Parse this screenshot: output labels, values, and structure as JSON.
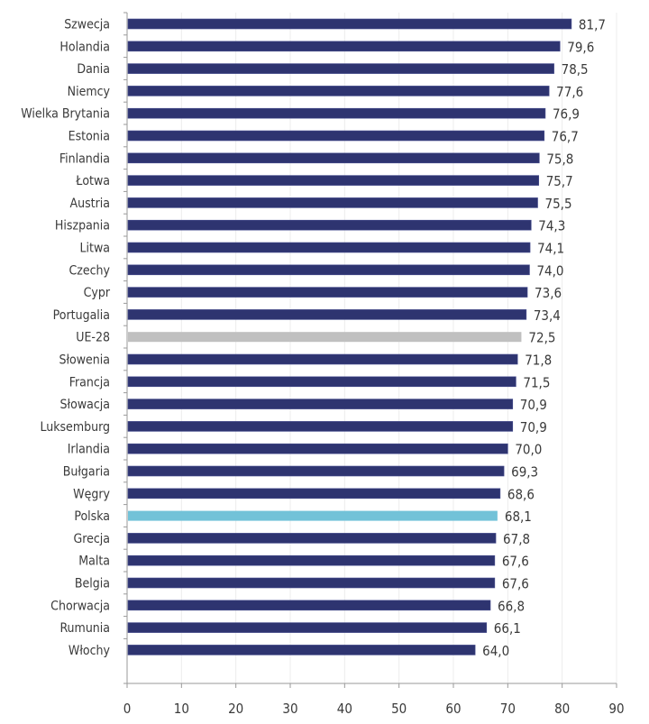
{
  "chart_data": {
    "type": "bar",
    "orientation": "horizontal",
    "title": "",
    "xlabel": "",
    "ylabel": "",
    "xlim": [
      0,
      90
    ],
    "xticks": [
      0,
      10,
      20,
      30,
      40,
      50,
      60,
      70,
      80,
      90
    ],
    "grid": true,
    "legend": "none",
    "categories": [
      "Szwecja",
      "Holandia",
      "Dania",
      "Niemcy",
      "Wielka Brytania",
      "Estonia",
      "Finlandia",
      "Łotwa",
      "Austria",
      "Hiszpania",
      "Litwa",
      "Czechy",
      "Cypr",
      "Portugalia",
      "UE-28",
      "Słowenia",
      "Francja",
      "Słowacja",
      "Luksemburg",
      "Irlandia",
      "Bułgaria",
      "Węgry",
      "Polska",
      "Grecja",
      "Malta",
      "Belgia",
      "Chorwacja",
      "Rumunia",
      "Włochy"
    ],
    "values": [
      81.7,
      79.6,
      78.5,
      77.6,
      76.9,
      76.7,
      75.8,
      75.7,
      75.5,
      74.3,
      74.1,
      74.0,
      73.6,
      73.4,
      72.5,
      71.8,
      71.5,
      70.9,
      70.9,
      70.0,
      69.3,
      68.6,
      68.1,
      67.8,
      67.6,
      67.6,
      66.8,
      66.1,
      64.0
    ],
    "value_labels": [
      "81,7",
      "79,6",
      "78,5",
      "77,6",
      "76,9",
      "76,7",
      "75,8",
      "75,7",
      "75,5",
      "74,3",
      "74,1",
      "74,0",
      "73,6",
      "73,4",
      "72,5",
      "71,8",
      "71,5",
      "70,9",
      "70,9",
      "70,0",
      "69,3",
      "68,6",
      "68,1",
      "67,8",
      "67,6",
      "67,6",
      "66,8",
      "66,1",
      "64,0"
    ],
    "colors": {
      "default": "#2e3470",
      "UE-28": "#c0c0c0",
      "Polska": "#72c2d8",
      "grid": "#ececec",
      "axis": "#9a9a9a"
    }
  }
}
